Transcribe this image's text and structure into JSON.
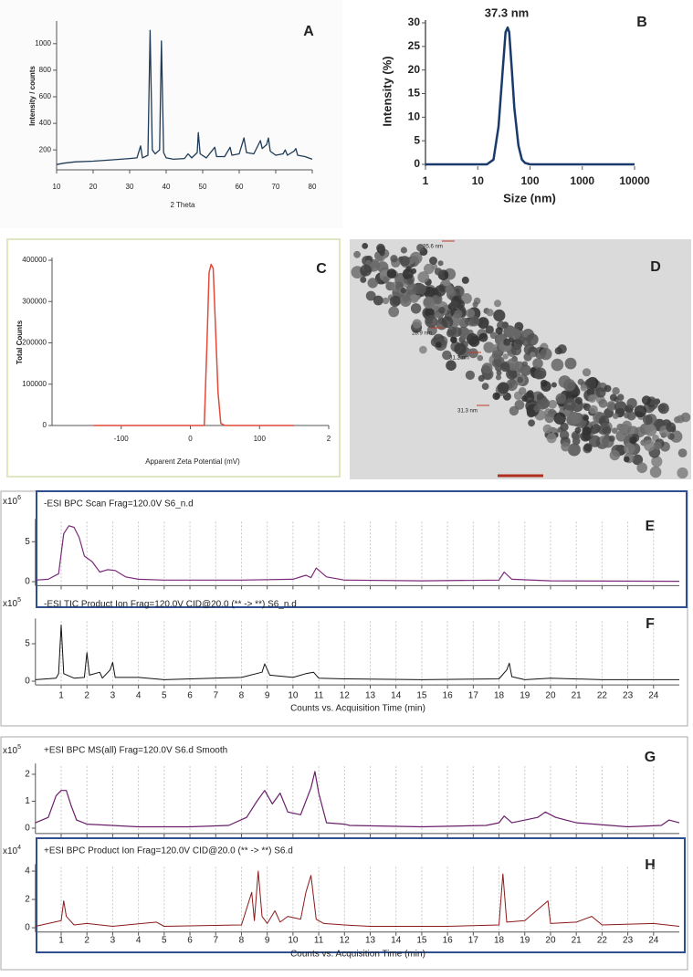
{
  "chart_data": [
    {
      "type": "line",
      "label": "A",
      "xlabel": "2 Theta",
      "ylabel": "Intensity / counts",
      "color": "#1f3b57",
      "x": [
        10,
        12,
        15,
        20,
        25,
        30,
        32,
        33,
        33.5,
        35,
        35.6,
        36.2,
        37,
        38.2,
        38.7,
        39.3,
        40,
        42,
        45,
        46,
        47,
        48.5,
        48.8,
        49.3,
        51,
        53.3,
        53.8,
        56,
        57.5,
        58,
        60,
        61.3,
        62,
        64,
        65.8,
        66.3,
        67.5,
        68,
        68.5,
        70,
        72,
        72.6,
        73.2,
        75,
        75.5,
        76,
        78,
        80
      ],
      "values": [
        90,
        100,
        110,
        115,
        125,
        135,
        140,
        230,
        140,
        160,
        1100,
        200,
        170,
        200,
        1020,
        180,
        140,
        130,
        135,
        170,
        140,
        180,
        330,
        170,
        140,
        220,
        150,
        150,
        220,
        160,
        170,
        290,
        180,
        170,
        270,
        210,
        240,
        290,
        190,
        160,
        170,
        200,
        160,
        190,
        210,
        160,
        150,
        130
      ],
      "xlim": [
        10,
        80
      ],
      "ylim": [
        50,
        1150
      ],
      "xticks": [
        10,
        20,
        30,
        40,
        50,
        60,
        70,
        80
      ],
      "yticks": [
        200,
        400,
        600,
        800,
        1000
      ],
      "grid": false
    },
    {
      "type": "line",
      "label": "B",
      "title": "37.3 nm",
      "xlabel": "Size (nm)",
      "ylabel": "Intensity (%)",
      "color": "#1a3a6b",
      "xscale": "log",
      "x": [
        1,
        15,
        20,
        25,
        30,
        34,
        37.3,
        40,
        45,
        50,
        60,
        70,
        80,
        100,
        10000
      ],
      "values": [
        0,
        0,
        1,
        8,
        20,
        28,
        29,
        28,
        20,
        12,
        4,
        1,
        0.3,
        0,
        0
      ],
      "xlim": [
        1,
        10000
      ],
      "ylim": [
        0,
        30
      ],
      "xticks": [
        1,
        10,
        100,
        1000,
        10000
      ],
      "yticks": [
        0,
        5,
        10,
        15,
        20,
        25,
        30
      ],
      "grid": false
    },
    {
      "type": "line",
      "label": "C",
      "xlabel": "Apparent Zeta Potential (mV)",
      "ylabel": "Total Counts",
      "color": "#e04a3a",
      "x": [
        -140,
        10,
        20,
        24,
        27,
        30,
        33,
        36,
        40,
        44,
        50,
        150
      ],
      "values": [
        0,
        0,
        0,
        200000,
        370000,
        390000,
        380000,
        250000,
        80000,
        5000,
        0,
        0
      ],
      "xlim": [
        -200,
        200
      ],
      "ylim": [
        0,
        400000
      ],
      "xticks": [
        -100,
        0,
        100,
        {
          "value": 200,
          "label": "2"
        }
      ],
      "yticks": [
        0,
        100000,
        200000,
        300000,
        400000
      ],
      "grid": false
    },
    {
      "type": "image",
      "label": "D",
      "annotations": [
        "35.6 nm",
        "28.9 nm",
        "31.2 nm",
        "31.3 nm"
      ]
    },
    {
      "type": "line",
      "label": "E",
      "title": "-ESI BPC Scan Frag=120.0V S6_n.d",
      "y_scale": {
        "base": "x10",
        "exponent": "6"
      },
      "color": "#7a2a78",
      "x": [
        0,
        0.5,
        0.9,
        1.1,
        1.3,
        1.5,
        1.7,
        1.9,
        2.2,
        2.5,
        2.8,
        3.1,
        3.5,
        4,
        5,
        8,
        10,
        10.5,
        10.7,
        10.9,
        11.3,
        12,
        15,
        18,
        18.2,
        18.5,
        20,
        25
      ],
      "values": [
        0.2,
        0.3,
        1,
        6,
        7,
        6.8,
        5.5,
        3.2,
        2.5,
        1.2,
        1.5,
        1.4,
        0.6,
        0.3,
        0.2,
        0.2,
        0.3,
        0.8,
        0.5,
        1.7,
        0.6,
        0.2,
        0.1,
        0.2,
        1.2,
        0.3,
        0.1,
        0.05
      ],
      "xlim": [
        0,
        25
      ],
      "ylim": [
        -0.5,
        7.5
      ],
      "xticks": [
        1,
        2,
        3,
        4,
        5,
        6,
        7,
        8,
        9,
        10,
        11,
        12,
        13,
        14,
        15,
        16,
        17,
        18,
        19,
        20,
        21,
        22,
        23,
        24
      ],
      "yticks": [
        0,
        5
      ],
      "grid": true
    },
    {
      "type": "line",
      "label": "F",
      "title": "-ESI TIC Product Ion Frag=120.0V CID@20.0 (** -> **) S6_n.d",
      "xlabel": "Counts vs. Acquisition Time (min)",
      "y_scale": {
        "base": "x10",
        "exponent": "5"
      },
      "color": "#111111",
      "x": [
        0,
        0.8,
        0.9,
        1,
        1.1,
        1.5,
        1.9,
        2,
        2.1,
        2.5,
        2.6,
        2.9,
        3,
        3.1,
        4,
        5,
        8,
        8.8,
        8.9,
        9.1,
        10,
        10.5,
        10.8,
        11,
        12,
        15,
        18,
        18.3,
        18.4,
        18.5,
        19,
        20,
        22,
        25
      ],
      "values": [
        0.2,
        0.4,
        1,
        7.5,
        1,
        0.4,
        0.5,
        3.8,
        0.8,
        1.2,
        0.4,
        1.5,
        2.5,
        0.5,
        0.5,
        0.2,
        0.5,
        1.2,
        2.3,
        0.8,
        0.5,
        1,
        1.2,
        0.4,
        0.3,
        0.2,
        0.3,
        1.5,
        2.4,
        0.6,
        0.2,
        0.4,
        0.2,
        0.2
      ],
      "xlim": [
        0,
        25
      ],
      "ylim": [
        -0.5,
        8
      ],
      "xticks": [
        1,
        2,
        3,
        4,
        5,
        6,
        7,
        8,
        9,
        10,
        11,
        12,
        13,
        14,
        15,
        16,
        17,
        18,
        19,
        20,
        21,
        22,
        23,
        24
      ],
      "yticks": [
        0,
        5
      ],
      "grid": true
    },
    {
      "type": "line",
      "label": "G",
      "title": "+ESI BPC MS(all) Frag=120.0V S6.d  Smooth",
      "y_scale": {
        "base": "x10",
        "exponent": "5"
      },
      "color": "#6a1f6a",
      "x": [
        0,
        0.5,
        0.8,
        1,
        1.2,
        1.4,
        1.6,
        2,
        4,
        6,
        7.5,
        8.2,
        8.6,
        8.9,
        9.2,
        9.5,
        9.8,
        10.3,
        10.7,
        10.85,
        11,
        11.3,
        12,
        12.2,
        15,
        17.5,
        18,
        18.2,
        18.5,
        19.5,
        19.8,
        20.2,
        21,
        23,
        24.3,
        24.6,
        25
      ],
      "values": [
        0.2,
        0.4,
        1.2,
        1.4,
        1.4,
        0.8,
        0.3,
        0.15,
        0.05,
        0.05,
        0.1,
        0.4,
        1,
        1.4,
        0.9,
        1.3,
        0.6,
        0.5,
        1.5,
        2.1,
        1.3,
        0.2,
        0.15,
        0.1,
        0.05,
        0.1,
        0.2,
        0.45,
        0.2,
        0.4,
        0.6,
        0.4,
        0.2,
        0.05,
        0.1,
        0.3,
        0.2
      ],
      "xlim": [
        0,
        25
      ],
      "ylim": [
        -0.2,
        2.3
      ],
      "xticks": [
        1,
        2,
        3,
        4,
        5,
        6,
        7,
        8,
        9,
        10,
        11,
        12,
        13,
        14,
        15,
        16,
        17,
        18,
        19,
        20,
        21,
        22,
        23,
        24
      ],
      "yticks": [
        0,
        1,
        2
      ],
      "grid": true
    },
    {
      "type": "line",
      "label": "H",
      "title": "+ESI BPC Product Ion Frag=120.0V CID@20.0 (** -> **) S6.d",
      "xlabel": "Counts vs. Acquisition Time (min)",
      "y_scale": {
        "base": "x10",
        "exponent": "4"
      },
      "color": "#8b1a1a",
      "x": [
        0,
        1,
        1.1,
        1.2,
        1.5,
        2,
        3,
        4.7,
        5,
        8,
        8.4,
        8.5,
        8.65,
        8.8,
        9,
        9.3,
        9.5,
        9.8,
        10.3,
        10.5,
        10.7,
        10.9,
        11.2,
        12,
        13,
        16,
        18,
        18.15,
        18.3,
        19,
        19.9,
        20,
        21,
        21.6,
        22,
        24,
        25
      ],
      "values": [
        0.1,
        0.5,
        1.9,
        0.8,
        0.2,
        0.3,
        0.1,
        0.4,
        0.1,
        0.2,
        2.5,
        0.5,
        4,
        0.8,
        0.3,
        1.2,
        0.4,
        0.8,
        0.6,
        2.5,
        3.7,
        0.6,
        0.3,
        0.2,
        0.1,
        0.1,
        0.2,
        3.8,
        0.4,
        0.5,
        1.9,
        0.3,
        0.4,
        0.8,
        0.2,
        0.3,
        0.1
      ],
      "xlim": [
        0,
        25
      ],
      "ylim": [
        -0.3,
        4.3
      ],
      "xticks": [
        1,
        2,
        3,
        4,
        5,
        6,
        7,
        8,
        9,
        10,
        11,
        12,
        13,
        14,
        15,
        16,
        17,
        18,
        19,
        20,
        21,
        22,
        23,
        24
      ],
      "yticks": [
        0,
        2,
        4
      ],
      "grid": true
    }
  ]
}
